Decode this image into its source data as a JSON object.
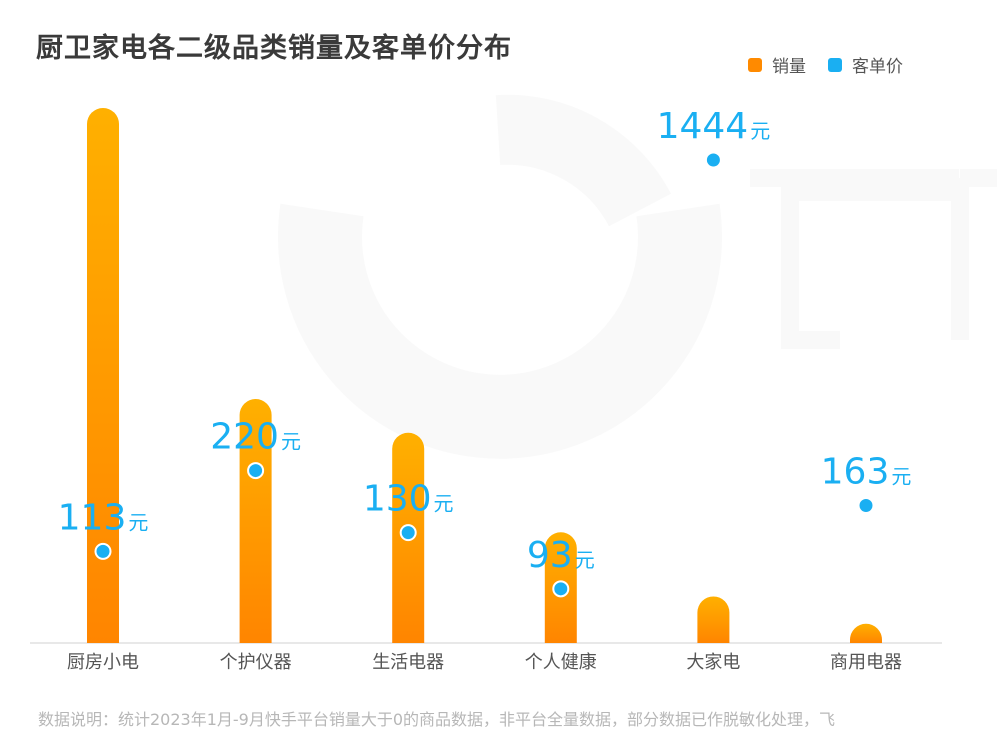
{
  "title": "厨卫家电各二级品类销量及客单价分布",
  "legend": [
    {
      "label": "销量",
      "color": "#FF8A00"
    },
    {
      "label": "客单价",
      "color": "#1AAFF2"
    }
  ],
  "footnote": "数据说明：统计2023年1月-9月快手平台销量大于0的商品数据，非平台全量数据，部分数据已作脱敏化处理，飞",
  "unit_label": "元",
  "chart_data": {
    "type": "bar",
    "categories": [
      "厨房小电",
      "个护仪器",
      "生活电器",
      "个人健康",
      "大家电",
      "商用电器"
    ],
    "series": [
      {
        "name": "销量",
        "type": "bar",
        "values": [
          100,
          45.6,
          39.3,
          20.7,
          8.7,
          1.2
        ],
        "color": "#FF8A00"
      },
      {
        "name": "客单价",
        "type": "scatter",
        "values": [
          113,
          220,
          130,
          93,
          1444,
          163
        ],
        "color": "#1AAFF2"
      }
    ],
    "xlabel": "",
    "ylabel": ""
  }
}
